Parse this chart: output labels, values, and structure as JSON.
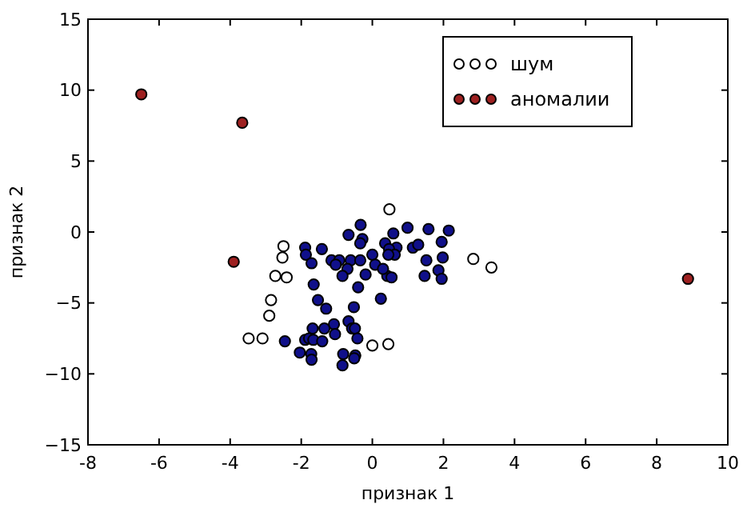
{
  "chart_data": {
    "type": "scatter",
    "xlabel": "признак 1",
    "ylabel": "признак 2",
    "xlim": [
      -8,
      10
    ],
    "xticks": [
      -8,
      -6,
      -4,
      -2,
      0,
      2,
      4,
      6,
      8,
      10
    ],
    "ylim": [
      -15,
      15
    ],
    "yticks": [
      {
        "value": -15,
        "label": "−15"
      },
      {
        "value": -10,
        "label": "−10"
      },
      {
        "value": -5,
        "label": "−5"
      },
      0,
      5,
      10,
      15
    ],
    "grid": false,
    "legend": "top right",
    "marker": "circle",
    "series": [
      {
        "color": "#10108a",
        "x": [
          -0.33,
          -0.67,
          -0.28,
          -0.34,
          0.99,
          1.58,
          2.15,
          0.59,
          0.36,
          0.68,
          0.47,
          1.14,
          1.29,
          1.95,
          -1.89,
          -1.42,
          -1.87,
          -1.71,
          -1.15,
          -0.93,
          -1.03,
          -0.61,
          -0.34,
          0.0,
          0.08,
          0.63,
          0.45,
          1.52,
          1.98,
          1.86,
          1.95,
          1.47,
          0.42,
          0.54,
          -0.19,
          0.3,
          -0.7,
          -0.84,
          -0.4,
          -1.65,
          -1.53,
          -1.3,
          -0.52,
          0.24,
          -1.68,
          -1.08,
          -1.05,
          -1.35,
          -0.67,
          -0.57,
          -0.49,
          -0.42,
          -2.46,
          -2.04,
          -1.89,
          -1.78,
          -1.66,
          -1.41,
          -1.72,
          -1.71,
          -0.82,
          -0.48,
          -0.51,
          -0.84
        ],
        "values": [
          0.5,
          -0.2,
          -0.5,
          -0.8,
          0.3,
          0.2,
          0.1,
          -0.1,
          -0.8,
          -1.1,
          -1.2,
          -1.1,
          -0.9,
          -0.7,
          -1.1,
          -1.2,
          -1.6,
          -2.2,
          -2.0,
          -2.0,
          -2.3,
          -2.0,
          -2.0,
          -1.6,
          -2.3,
          -1.6,
          -1.6,
          -2.0,
          -1.8,
          -2.7,
          -3.3,
          -3.1,
          -3.1,
          -3.2,
          -3.0,
          -2.6,
          -2.6,
          -3.1,
          -3.9,
          -3.7,
          -4.8,
          -5.4,
          -5.3,
          -4.7,
          -6.8,
          -6.5,
          -7.2,
          -6.8,
          -6.3,
          -6.8,
          -6.8,
          -7.5,
          -7.7,
          -8.5,
          -7.6,
          -7.5,
          -7.6,
          -7.7,
          -8.6,
          -9.0,
          -8.6,
          -8.7,
          -8.9,
          -9.4
        ]
      },
      {
        "name": "шум",
        "color": "#ffffff",
        "x": [
          0.48,
          -2.5,
          -2.53,
          -2.73,
          -2.41,
          -2.85,
          -2.9,
          -3.48,
          -3.09,
          0.0,
          0.45,
          2.84,
          3.35
        ],
        "values": [
          1.6,
          -1.0,
          -1.8,
          -3.1,
          -3.2,
          -4.8,
          -5.9,
          -7.5,
          -7.5,
          -8.0,
          -7.9,
          -1.9,
          -2.5
        ]
      },
      {
        "name": "аномалии",
        "color": "#9e2121",
        "x": [
          -6.5,
          -3.66,
          -3.9,
          8.88
        ],
        "values": [
          9.7,
          7.7,
          -2.1,
          -3.3
        ]
      }
    ]
  }
}
